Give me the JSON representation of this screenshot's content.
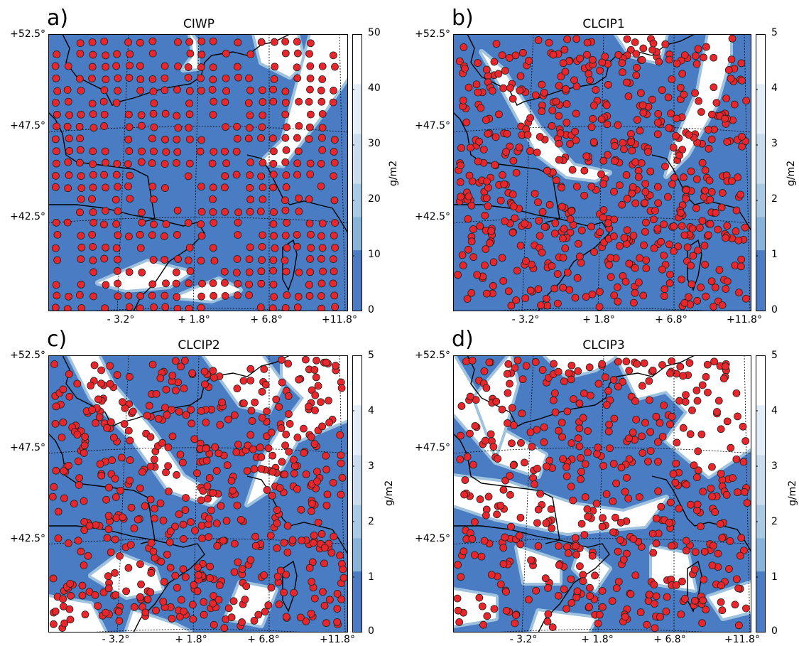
{
  "panels": [
    {
      "id": "a",
      "letter": "a)",
      "title": "CIWP",
      "lat_labels": [
        "+52.5°",
        "+47.5°",
        "+42.5°"
      ],
      "lon_labels": [
        "- 3.2°",
        "+ 1.8°",
        "+ 6.8°",
        "+11.8°"
      ],
      "colorbar": {
        "ticks": [
          "50",
          "40",
          "30",
          "20",
          "10",
          "0"
        ],
        "unit": "g/m2"
      }
    },
    {
      "id": "b",
      "letter": "b)",
      "title": "CLCIP1",
      "lat_labels": [
        "+52.5°",
        "+47.5°",
        "+42.5°"
      ],
      "lon_labels": [
        "- 3.2°",
        "+ 1.8°",
        "+ 6.8°",
        "+11.8°"
      ],
      "colorbar": {
        "ticks": [
          "5",
          "4",
          "3",
          "2",
          "1",
          "0"
        ],
        "unit": "g/m2"
      }
    },
    {
      "id": "c",
      "letter": "c)",
      "title": "CLCIP2",
      "lat_labels": [
        "+52.5°",
        "+47.5°",
        "+42.5°"
      ],
      "lon_labels": [
        "- 3.2°",
        "+ 1.8°",
        "+ 6.8°",
        "+11.8°"
      ],
      "colorbar": {
        "ticks": [
          "5",
          "4",
          "3",
          "2",
          "1",
          "0"
        ],
        "unit": "g/m2"
      }
    },
    {
      "id": "d",
      "letter": "d)",
      "title": "CLCIP3",
      "lat_labels": [
        "+52.5°",
        "+47.5°",
        "+42.5°"
      ],
      "lon_labels": [
        "- 3.2°",
        "+ 1.8°",
        "+ 6.8°",
        "+11.8°"
      ],
      "colorbar": {
        "ticks": [
          "5",
          "4",
          "3",
          "2",
          "1",
          "0"
        ],
        "unit": "g/m2"
      }
    }
  ],
  "colors": {
    "field_dark": "#4a7cc4",
    "field_light": "#ffffff",
    "marker": "#e8262b",
    "marker_edge": "#222222",
    "coast": "#000000"
  }
}
